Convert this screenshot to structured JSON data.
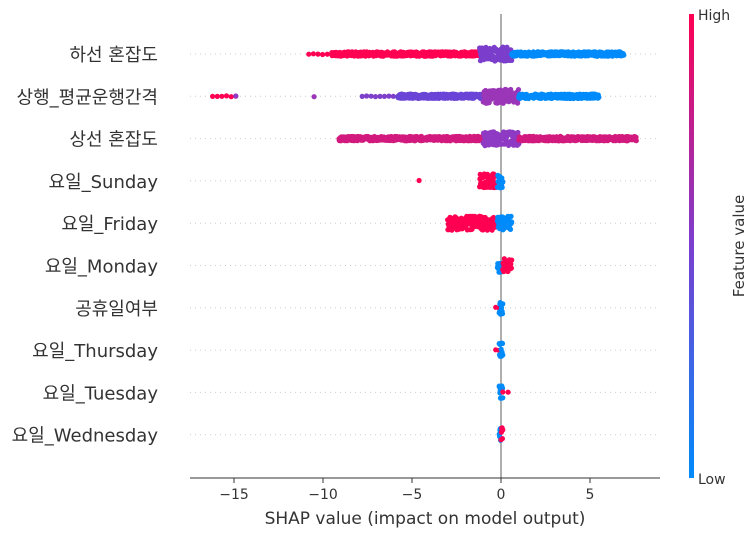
{
  "chart_data": {
    "type": "scatter",
    "subtype": "shap-beeswarm",
    "xlabel": "SHAP value (impact on model output)",
    "xlim": [
      -17.5,
      8.8
    ],
    "xticks": [
      -15,
      -10,
      -5,
      0,
      5
    ],
    "grid": false,
    "colorbar": {
      "label": "Feature value",
      "high_label": "High",
      "low_label": "Low",
      "high_color": "#ff0052",
      "low_color": "#008bfb"
    },
    "features": [
      {
        "name": "하선 혼잡도",
        "range": [
          -10.8,
          6.9
        ],
        "clusters": [
          {
            "from": -10.8,
            "to": -9.5,
            "color": "#ff0052",
            "density": "sparse"
          },
          {
            "from": -9.5,
            "to": -1.2,
            "color": "#ff0052",
            "density": "dense"
          },
          {
            "from": -1.2,
            "to": 0.6,
            "color": "#7b3fcc",
            "density": "dense"
          },
          {
            "from": 0.6,
            "to": 6.9,
            "color": "#008bfb",
            "density": "dense"
          }
        ]
      },
      {
        "name": "상행_평균운행간격",
        "range": [
          -16.2,
          5.5
        ],
        "clusters": [
          {
            "from": -16.2,
            "to": -14.9,
            "color": "#ff0052",
            "density": "sparse"
          },
          {
            "from": -14.9,
            "to": -14.8,
            "color": "#8e3ac4",
            "density": "sparse"
          },
          {
            "from": -10.5,
            "to": -10.5,
            "color": "#9b36b8",
            "density": "sparse"
          },
          {
            "from": -7.8,
            "to": -5.8,
            "color": "#7e3fcb",
            "density": "sparse"
          },
          {
            "from": -5.8,
            "to": -1.0,
            "color": "#6a45d6",
            "density": "dense"
          },
          {
            "from": -1.0,
            "to": 1.0,
            "color": "#9b36b8",
            "density": "dense"
          },
          {
            "from": 1.0,
            "to": 5.5,
            "color": "#008bfb",
            "density": "dense"
          }
        ]
      },
      {
        "name": "상선 혼잡도",
        "range": [
          -9.1,
          7.6
        ],
        "clusters": [
          {
            "from": -9.1,
            "to": -1.0,
            "color": "#d21a7e",
            "density": "dense"
          },
          {
            "from": -1.0,
            "to": 1.0,
            "color": "#8e3ac4",
            "density": "dense"
          },
          {
            "from": 1.0,
            "to": 7.6,
            "color": "#d21a7e",
            "density": "dense"
          }
        ]
      },
      {
        "name": "요일_Sunday",
        "range": [
          -4.6,
          0.1
        ],
        "clusters": [
          {
            "from": -4.6,
            "to": -4.6,
            "color": "#ff0052",
            "density": "sparse"
          },
          {
            "from": -1.2,
            "to": -0.3,
            "color": "#ff0052",
            "density": "dense"
          },
          {
            "from": -0.2,
            "to": 0.1,
            "color": "#008bfb",
            "density": "dense"
          }
        ]
      },
      {
        "name": "요일_Friday",
        "range": [
          -3.0,
          0.6
        ],
        "clusters": [
          {
            "from": -3.0,
            "to": -0.3,
            "color": "#ff0052",
            "density": "dense"
          },
          {
            "from": -0.2,
            "to": 0.6,
            "color": "#008bfb",
            "density": "dense"
          }
        ]
      },
      {
        "name": "요일_Monday",
        "range": [
          -0.2,
          0.6
        ],
        "clusters": [
          {
            "from": -0.2,
            "to": 0.1,
            "color": "#008bfb",
            "density": "dense"
          },
          {
            "from": 0.1,
            "to": 0.6,
            "color": "#ff0052",
            "density": "dense"
          }
        ]
      },
      {
        "name": "공휴일여부",
        "range": [
          -0.3,
          0.1
        ],
        "clusters": [
          {
            "from": -0.3,
            "to": -0.1,
            "color": "#ff0052",
            "density": "sparse"
          },
          {
            "from": -0.1,
            "to": 0.1,
            "color": "#008bfb",
            "density": "dense"
          }
        ]
      },
      {
        "name": "요일_Thursday",
        "range": [
          -0.3,
          0.1
        ],
        "clusters": [
          {
            "from": -0.3,
            "to": -0.1,
            "color": "#ff0052",
            "density": "sparse"
          },
          {
            "from": -0.1,
            "to": 0.1,
            "color": "#008bfb",
            "density": "dense"
          }
        ]
      },
      {
        "name": "요일_Tuesday",
        "range": [
          -0.1,
          0.4
        ],
        "clusters": [
          {
            "from": -0.1,
            "to": 0.1,
            "color": "#008bfb",
            "density": "dense"
          },
          {
            "from": 0.1,
            "to": 0.4,
            "color": "#ff0052",
            "density": "sparse"
          }
        ]
      },
      {
        "name": "요일_Wednesday",
        "range": [
          -0.1,
          0.1
        ],
        "clusters": [
          {
            "from": -0.1,
            "to": 0.0,
            "color": "#008bfb",
            "density": "dense"
          },
          {
            "from": 0.0,
            "to": 0.1,
            "color": "#ff0052",
            "density": "dense"
          }
        ]
      }
    ]
  }
}
